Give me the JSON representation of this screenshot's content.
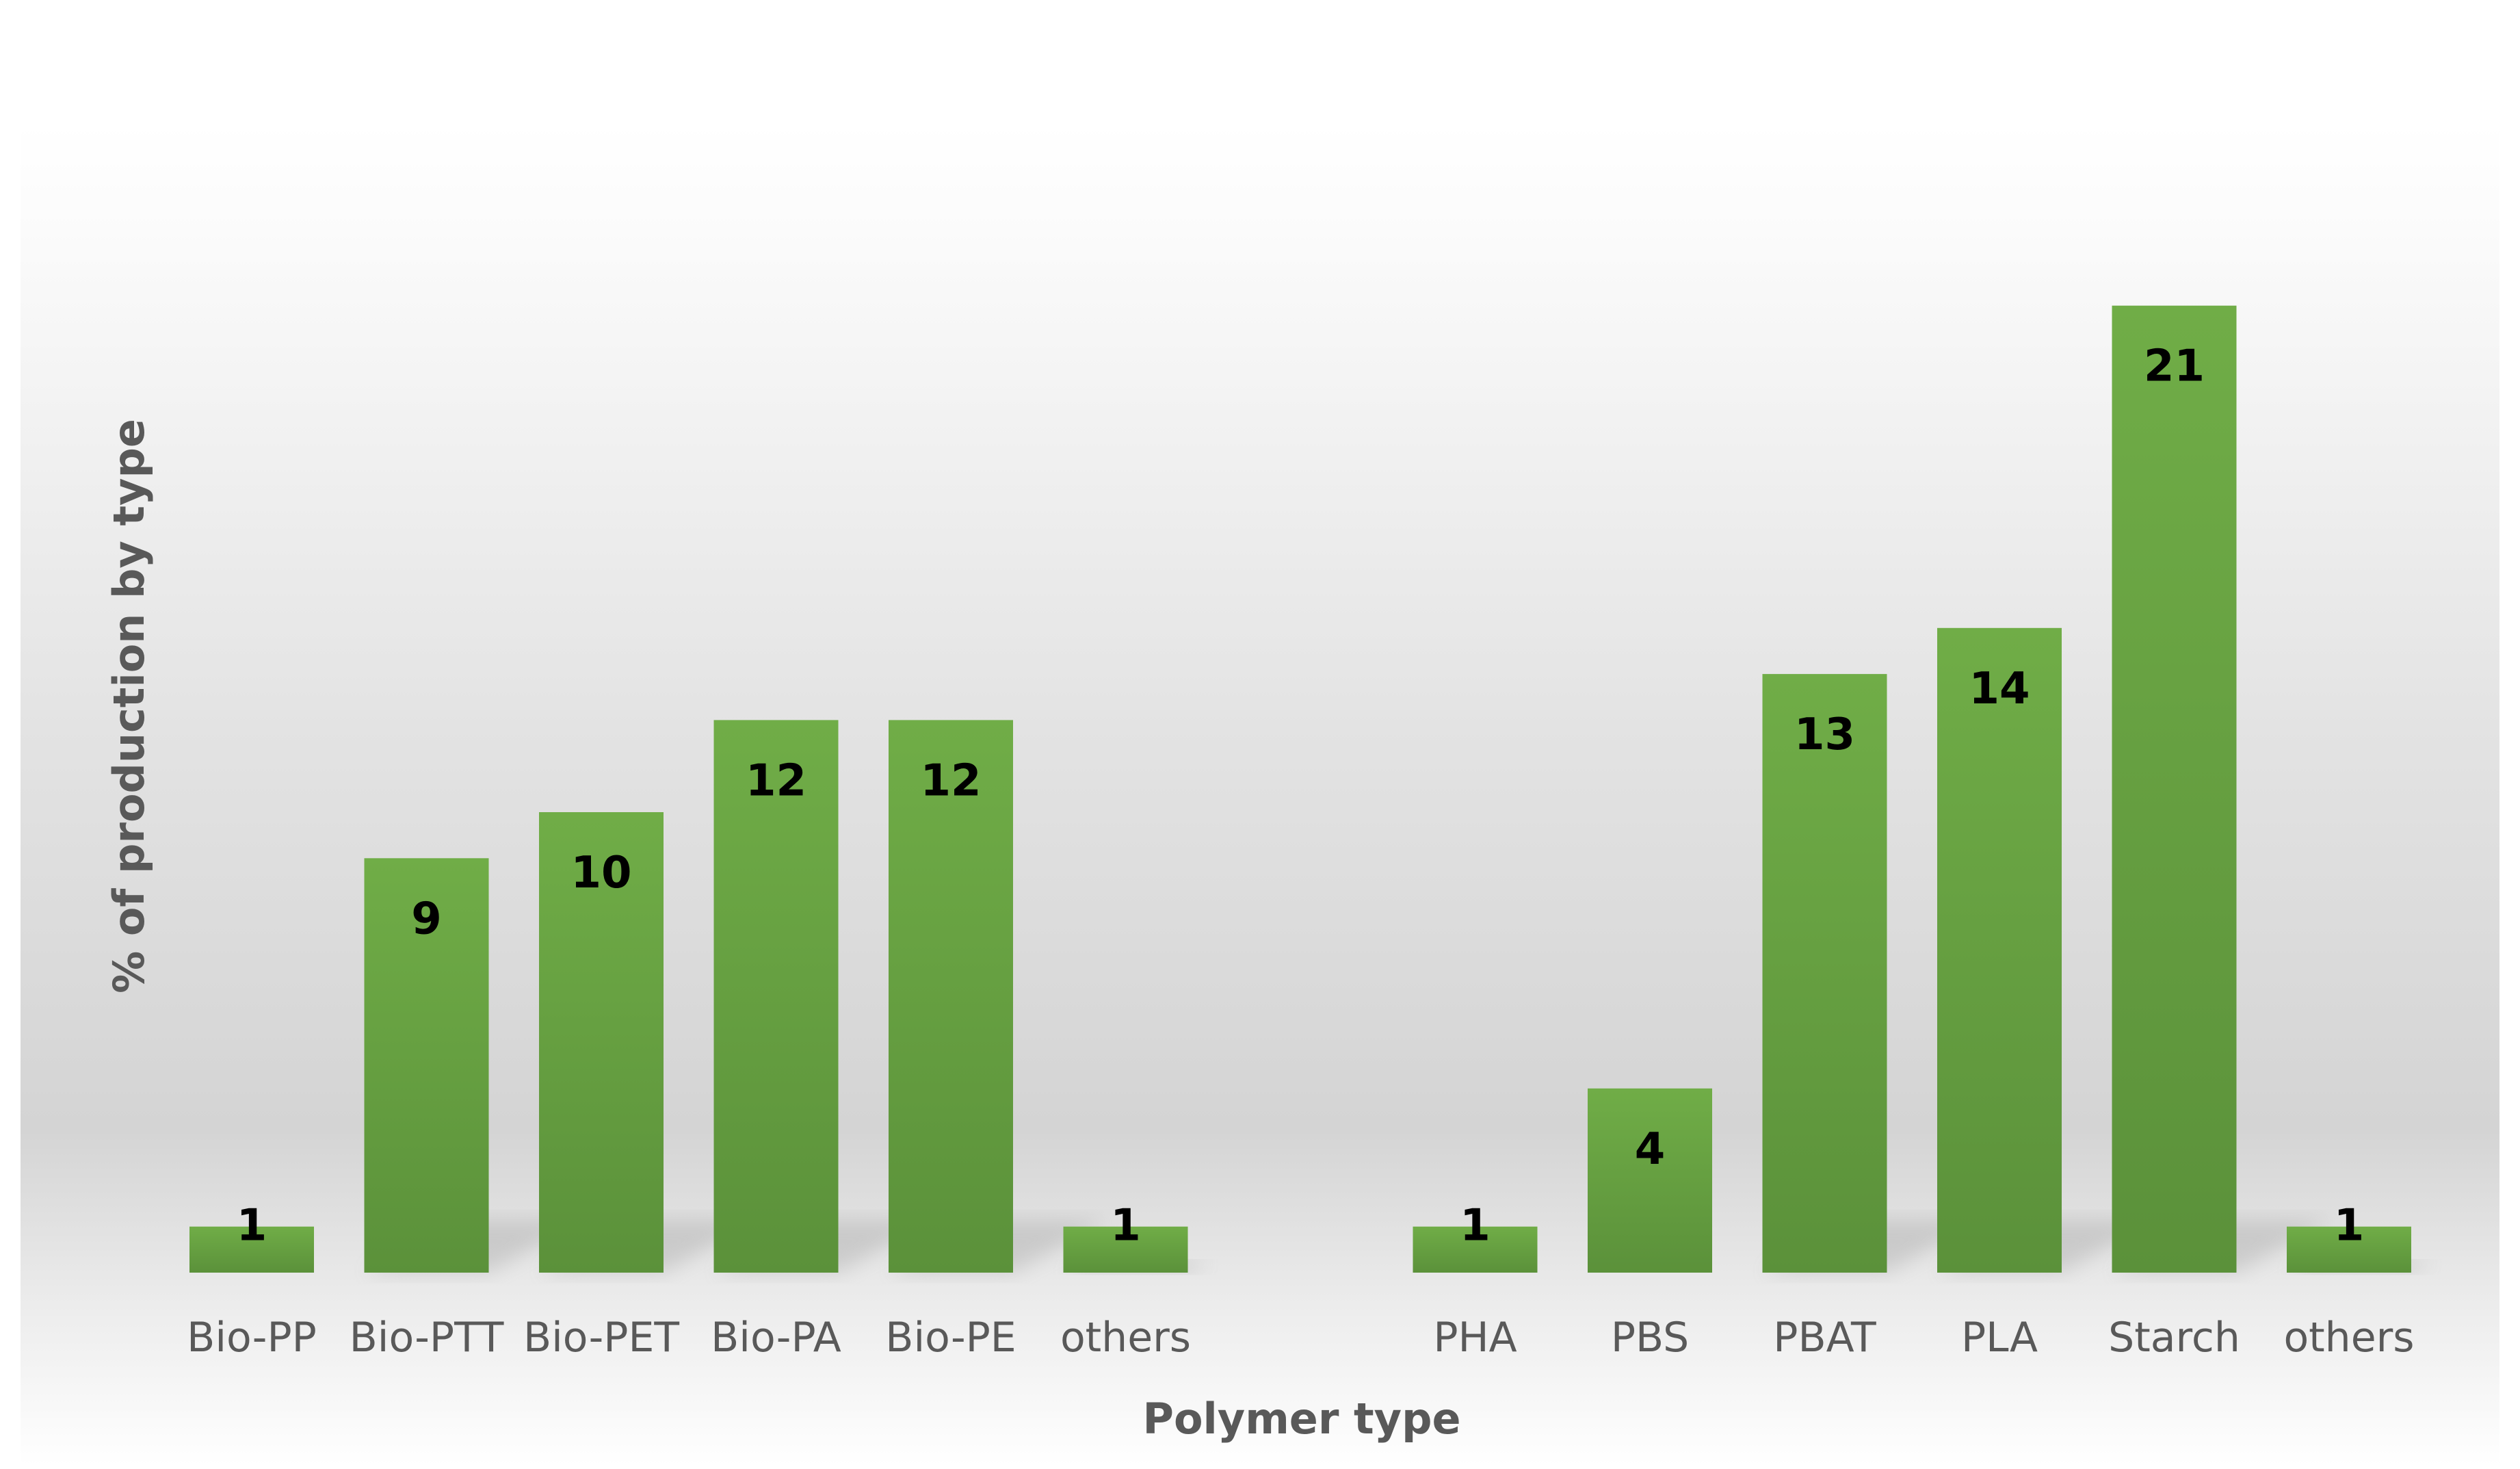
{
  "chart_data": {
    "type": "bar",
    "title": "",
    "xlabel": "Polymer type",
    "ylabel": "% of production by type",
    "ylim": [
      0,
      22
    ],
    "grid": false,
    "legend": "none",
    "categories": [
      "Bio-PP",
      "Bio-PTT",
      "Bio-PET",
      "Bio-PA",
      "Bio-PE",
      "others",
      "",
      "PHA",
      "PBS",
      "PBAT",
      "PLA",
      "Starch",
      "others"
    ],
    "values": [
      1,
      9,
      10,
      12,
      12,
      1,
      null,
      1,
      4,
      13,
      14,
      21,
      1
    ]
  },
  "colors": {
    "bar_light": "#70ad47",
    "bar_dark": "#5b913a",
    "background_top": "#ffffff",
    "background_mid": "#d9d9d9",
    "text": "#595959"
  }
}
